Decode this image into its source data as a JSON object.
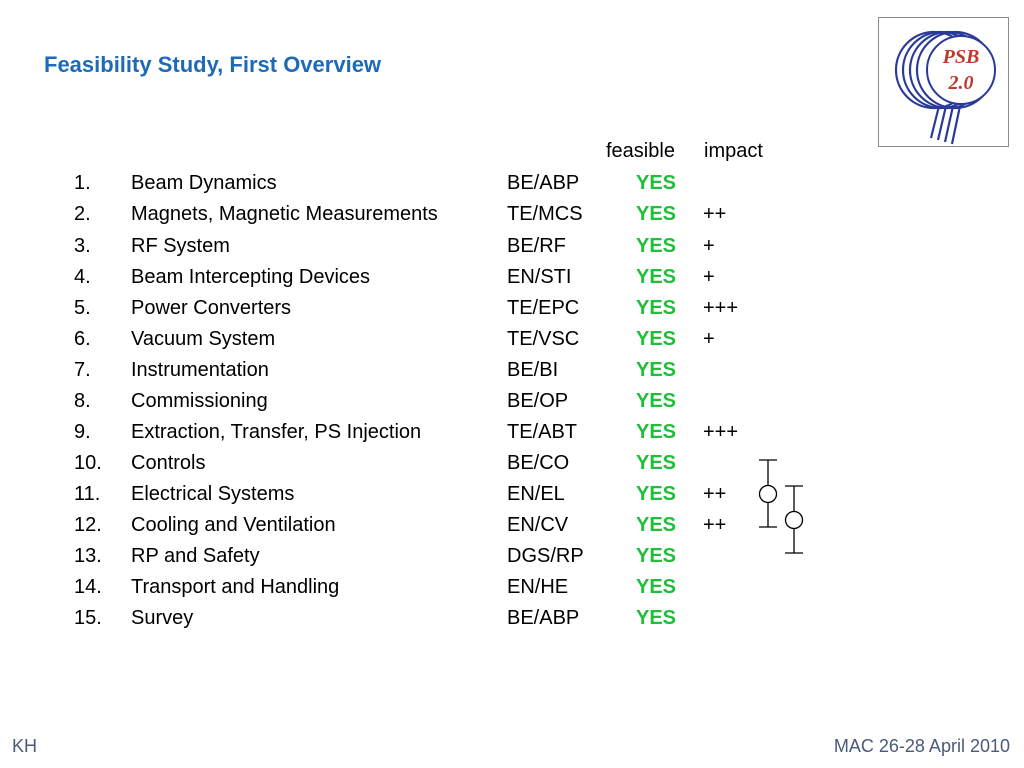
{
  "title": "Feasibility Study, First Overview",
  "logo": {
    "line1": "PSB",
    "line2": "2.0"
  },
  "table": {
    "headers": {
      "feasible": "feasible",
      "impact": "impact"
    },
    "rows": [
      {
        "num": "1.",
        "name": "Beam Dynamics",
        "dept": "BE/ABP",
        "feasible": "YES",
        "impact": ""
      },
      {
        "num": "2.",
        "name": "Magnets, Magnetic Measurements",
        "dept": "TE/MCS",
        "feasible": "YES",
        "impact": "++"
      },
      {
        "num": "3.",
        "name": "RF System",
        "dept": "BE/RF",
        "feasible": "YES",
        "impact": "+"
      },
      {
        "num": "4.",
        "name": "Beam Intercepting Devices",
        "dept": "EN/STI",
        "feasible": "YES",
        "impact": "+"
      },
      {
        "num": "5.",
        "name": "Power Converters",
        "dept": "TE/EPC",
        "feasible": "YES",
        "impact": "+++"
      },
      {
        "num": "6.",
        "name": "Vacuum System",
        "dept": "TE/VSC",
        "feasible": "YES",
        "impact": "+"
      },
      {
        "num": "7.",
        "name": "Instrumentation",
        "dept": "BE/BI",
        "feasible": "YES",
        "impact": ""
      },
      {
        "num": "8.",
        "name": "Commissioning",
        "dept": "BE/OP",
        "feasible": "YES",
        "impact": ""
      },
      {
        "num": "9.",
        "name": "Extraction, Transfer, PS Injection",
        "dept": "TE/ABT",
        "feasible": "YES",
        "impact": "+++"
      },
      {
        "num": "10.",
        "name": "Controls",
        "dept": "BE/CO",
        "feasible": "YES",
        "impact": ""
      },
      {
        "num": "11.",
        "name": "Electrical Systems",
        "dept": "EN/EL",
        "feasible": "YES",
        "impact": "++"
      },
      {
        "num": "12.",
        "name": "Cooling and Ventilation",
        "dept": "EN/CV",
        "feasible": "YES",
        "impact": "++"
      },
      {
        "num": "13.",
        "name": "RP and Safety",
        "dept": "DGS/RP",
        "feasible": "YES",
        "impact": ""
      },
      {
        "num": "14.",
        "name": "Transport and Handling",
        "dept": "EN/HE",
        "feasible": "YES",
        "impact": ""
      },
      {
        "num": "15.",
        "name": "Survey",
        "dept": "BE/ABP",
        "feasible": "YES",
        "impact": ""
      }
    ]
  },
  "footer": {
    "left": "KH",
    "right": "MAC 26-28 April 2010"
  },
  "colors": {
    "title": "#1f6ab5",
    "yes": "#1fbf3a",
    "logo_lines": "#2a3a9a",
    "logo_text": "#c0392b"
  }
}
